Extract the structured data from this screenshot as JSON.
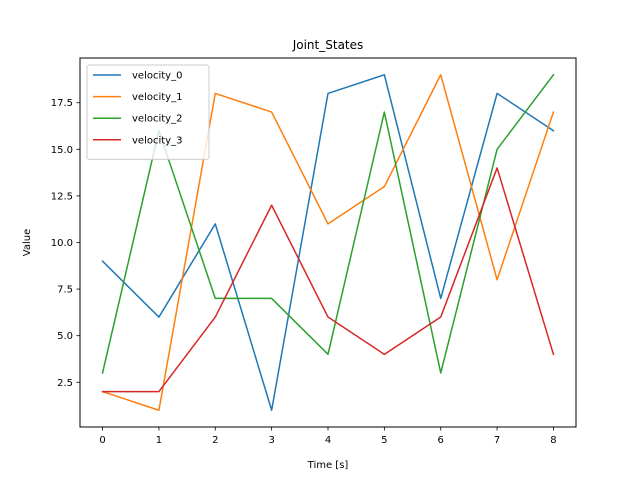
{
  "chart_data": {
    "type": "line",
    "title": "Joint_States",
    "xlabel": "Time [s]",
    "ylabel": "Value",
    "x": [
      0,
      1,
      2,
      3,
      4,
      5,
      6,
      7,
      8
    ],
    "xlim": [
      -0.4,
      8.4
    ],
    "ylim": [
      0.1,
      19.9
    ],
    "xticks": [
      "0",
      "1",
      "2",
      "3",
      "4",
      "5",
      "6",
      "7",
      "8"
    ],
    "yticks": [
      "2.5",
      "5.0",
      "7.5",
      "10.0",
      "12.5",
      "15.0",
      "17.5"
    ],
    "grid": false,
    "legend_position": "top-left",
    "series": [
      {
        "name": "velocity_0",
        "color": "#1f77b4",
        "values": [
          9,
          6,
          11,
          1,
          18,
          19,
          7,
          18,
          16
        ]
      },
      {
        "name": "velocity_1",
        "color": "#ff7f0e",
        "values": [
          2,
          1,
          18,
          17,
          11,
          13,
          19,
          8,
          17
        ]
      },
      {
        "name": "velocity_2",
        "color": "#2ca02c",
        "values": [
          3,
          16,
          7,
          7,
          4,
          17,
          3,
          15,
          19
        ]
      },
      {
        "name": "velocity_3",
        "color": "#d62728",
        "values": [
          2,
          2,
          6,
          12,
          6,
          4,
          6,
          14,
          4
        ]
      }
    ]
  }
}
